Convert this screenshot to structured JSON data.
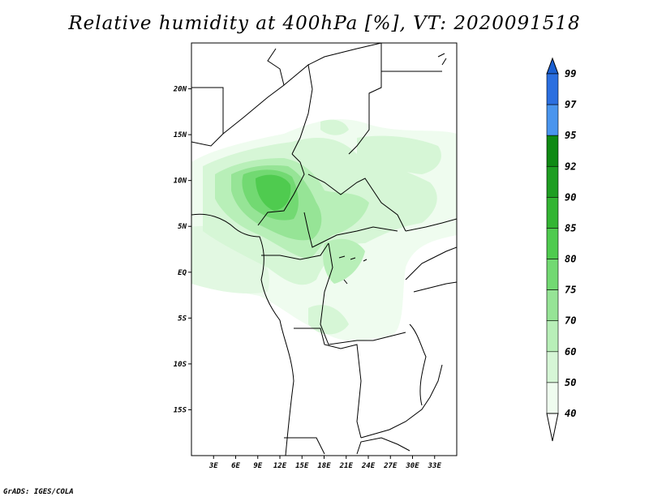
{
  "title": "Relative humidity at 400hPa [%], VT: 2020091518",
  "credit": "GrADS: IGES/COLA",
  "map": {
    "lon_range": [
      0,
      36
    ],
    "lat_range": [
      -20,
      25
    ],
    "lon_ticks": [
      "3E",
      "6E",
      "9E",
      "12E",
      "15E",
      "18E",
      "21E",
      "24E",
      "27E",
      "30E",
      "33E"
    ],
    "lat_ticks": [
      "20N",
      "15N",
      "10N",
      "5N",
      "EQ",
      "5S",
      "10S",
      "15S"
    ]
  },
  "colorbar": {
    "labels": [
      "99",
      "97",
      "95",
      "92",
      "90",
      "85",
      "80",
      "75",
      "70",
      "60",
      "50",
      "40"
    ],
    "colors": [
      "#1a5fd1",
      "#2b6fe0",
      "#4a95ee",
      "#0f8a14",
      "#1e9e22",
      "#33b533",
      "#4fcb4f",
      "#72d972",
      "#96e496",
      "#b8efb8",
      "#d6f6d6",
      "#effcef"
    ]
  }
}
